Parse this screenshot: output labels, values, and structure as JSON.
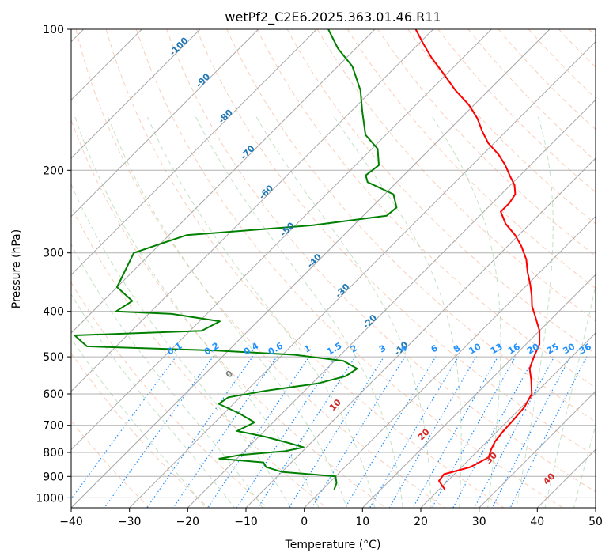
{
  "chart_data": {
    "type": "skew-t",
    "title": "wetPf2_C2E6.2025.363.01.46.R11",
    "xlabel": "Temperature (°C)",
    "ylabel": "Pressure (hPa)",
    "xlim": [
      -40,
      50
    ],
    "ylim": [
      1050,
      100
    ],
    "x_ticks": [
      -40,
      -30,
      -20,
      -10,
      0,
      10,
      20,
      30,
      40,
      50
    ],
    "x_tick_labels": [
      "−40",
      "−30",
      "−20",
      "−10",
      "0",
      "10",
      "20",
      "30",
      "40",
      "50"
    ],
    "y_ticks": [
      100,
      200,
      300,
      400,
      500,
      600,
      700,
      800,
      900,
      1000
    ],
    "y_tick_labels": [
      "100",
      "200",
      "300",
      "400",
      "500",
      "600",
      "700",
      "800",
      "900",
      "1000"
    ],
    "grid": true,
    "temperature_profile": {
      "color": "#ff0000",
      "points": [
        {
          "p": 960,
          "t": 21.0
        },
        {
          "p": 920,
          "t": 18.5
        },
        {
          "p": 890,
          "t": 18.2
        },
        {
          "p": 860,
          "t": 21.5
        },
        {
          "p": 820,
          "t": 23.0
        },
        {
          "p": 790,
          "t": 22.1
        },
        {
          "p": 760,
          "t": 21.4
        },
        {
          "p": 720,
          "t": 21.0
        },
        {
          "p": 680,
          "t": 20.8
        },
        {
          "p": 640,
          "t": 20.5
        },
        {
          "p": 600,
          "t": 19.5
        },
        {
          "p": 560,
          "t": 17.0
        },
        {
          "p": 530,
          "t": 14.8
        },
        {
          "p": 500,
          "t": 13.5
        },
        {
          "p": 470,
          "t": 12.3
        },
        {
          "p": 440,
          "t": 10.0
        },
        {
          "p": 410,
          "t": 6.8
        },
        {
          "p": 390,
          "t": 4.5
        },
        {
          "p": 370,
          "t": 2.6
        },
        {
          "p": 350,
          "t": 0.4
        },
        {
          "p": 330,
          "t": -2.1
        },
        {
          "p": 310,
          "t": -4.5
        },
        {
          "p": 290,
          "t": -7.7
        },
        {
          "p": 275,
          "t": -10.6
        },
        {
          "p": 260,
          "t": -14.2
        },
        {
          "p": 245,
          "t": -17.1
        },
        {
          "p": 235,
          "t": -17.1
        },
        {
          "p": 225,
          "t": -17.6
        },
        {
          "p": 215,
          "t": -19.3
        },
        {
          "p": 205,
          "t": -21.8
        },
        {
          "p": 195,
          "t": -24.3
        },
        {
          "p": 185,
          "t": -27.3
        },
        {
          "p": 175,
          "t": -31.0
        },
        {
          "p": 165,
          "t": -34.1
        },
        {
          "p": 155,
          "t": -37.1
        },
        {
          "p": 145,
          "t": -40.9
        },
        {
          "p": 135,
          "t": -45.7
        },
        {
          "p": 125,
          "t": -50.3
        },
        {
          "p": 115,
          "t": -55.4
        },
        {
          "p": 107,
          "t": -59.4
        },
        {
          "p": 100,
          "t": -63.0
        }
      ]
    },
    "dewpoint_profile": {
      "color": "#008000",
      "points": [
        {
          "p": 960,
          "t": 2.0
        },
        {
          "p": 930,
          "t": 1.3
        },
        {
          "p": 900,
          "t": 0.0
        },
        {
          "p": 880,
          "t": -10.0
        },
        {
          "p": 860,
          "t": -13.5
        },
        {
          "p": 840,
          "t": -14.8
        },
        {
          "p": 825,
          "t": -23.0
        },
        {
          "p": 810,
          "t": -20.0
        },
        {
          "p": 795,
          "t": -13.0
        },
        {
          "p": 780,
          "t": -10.5
        },
        {
          "p": 765,
          "t": -13.5
        },
        {
          "p": 740,
          "t": -19.0
        },
        {
          "p": 720,
          "t": -24.7
        },
        {
          "p": 690,
          "t": -23.2
        },
        {
          "p": 660,
          "t": -27.4
        },
        {
          "p": 630,
          "t": -32.5
        },
        {
          "p": 610,
          "t": -32.0
        },
        {
          "p": 590,
          "t": -26.5
        },
        {
          "p": 570,
          "t": -19.0
        },
        {
          "p": 550,
          "t": -15.5
        },
        {
          "p": 530,
          "t": -14.8
        },
        {
          "p": 510,
          "t": -18.5
        },
        {
          "p": 495,
          "t": -28.0
        },
        {
          "p": 485,
          "t": -42.0
        },
        {
          "p": 475,
          "t": -65.0
        },
        {
          "p": 450,
          "t": -69.0
        },
        {
          "p": 440,
          "t": -48.0
        },
        {
          "p": 420,
          "t": -46.5
        },
        {
          "p": 405,
          "t": -56.0
        },
        {
          "p": 400,
          "t": -66.0
        },
        {
          "p": 380,
          "t": -65.0
        },
        {
          "p": 355,
          "t": -70.0
        },
        {
          "p": 300,
          "t": -73.0
        },
        {
          "p": 285,
          "t": -69.5
        },
        {
          "p": 275,
          "t": -67.0
        },
        {
          "p": 262,
          "t": -47.0
        },
        {
          "p": 250,
          "t": -36.0
        },
        {
          "p": 240,
          "t": -35.7
        },
        {
          "p": 225,
          "t": -38.5
        },
        {
          "p": 212,
          "t": -45.0
        },
        {
          "p": 205,
          "t": -46.5
        },
        {
          "p": 195,
          "t": -46.0
        },
        {
          "p": 180,
          "t": -49.0
        },
        {
          "p": 168,
          "t": -53.5
        },
        {
          "p": 150,
          "t": -58.0
        },
        {
          "p": 135,
          "t": -62.0
        },
        {
          "p": 120,
          "t": -67.5
        },
        {
          "p": 110,
          "t": -73.0
        },
        {
          "p": 100,
          "t": -78.0
        }
      ]
    },
    "isotherm_labels": {
      "color": "#1f77b4",
      "items": [
        {
          "t": -100,
          "p": 110,
          "text": "-100"
        },
        {
          "t": -90,
          "p": 130,
          "text": "-90"
        },
        {
          "t": -80,
          "p": 155,
          "text": "-80"
        },
        {
          "t": -70,
          "p": 185,
          "text": "-70"
        },
        {
          "t": -60,
          "p": 225,
          "text": "-60"
        },
        {
          "t": -50,
          "p": 270,
          "text": "-50"
        },
        {
          "t": -40,
          "p": 315,
          "text": "-40"
        },
        {
          "t": -30,
          "p": 365,
          "text": "-30"
        },
        {
          "t": -20,
          "p": 425,
          "text": "-20"
        },
        {
          "t": -10,
          "p": 485,
          "text": "-10"
        }
      ]
    },
    "moist_adiabat_labels": {
      "color": "#d62728",
      "items": [
        {
          "t": 0,
          "p": 550,
          "text": "0",
          "color": "#808080"
        },
        {
          "t": 10,
          "p": 640,
          "text": "10"
        },
        {
          "t": 20,
          "p": 740,
          "text": "20"
        },
        {
          "t": 30,
          "p": 830,
          "text": "30"
        },
        {
          "t": 40,
          "p": 920,
          "text": "40"
        }
      ]
    },
    "mixing_ratio_labels": {
      "color": "#1e90ff",
      "p": 500,
      "items": [
        {
          "w": 0.1,
          "text": "0.1"
        },
        {
          "w": 0.2,
          "text": "0.2"
        },
        {
          "w": 0.4,
          "text": "0.4"
        },
        {
          "w": 0.6,
          "text": "0.6"
        },
        {
          "w": 1,
          "text": "1"
        },
        {
          "w": 1.5,
          "text": "1.5"
        },
        {
          "w": 2,
          "text": "2"
        },
        {
          "w": 3,
          "text": "3"
        },
        {
          "w": 4,
          "text": "4"
        },
        {
          "w": 6,
          "text": "6"
        },
        {
          "w": 8,
          "text": "8"
        },
        {
          "w": 10,
          "text": "10"
        },
        {
          "w": 13,
          "text": "13"
        },
        {
          "w": 16,
          "text": "16"
        },
        {
          "w": 20,
          "text": "20"
        },
        {
          "w": 25,
          "text": "25"
        },
        {
          "w": 30,
          "text": "30"
        },
        {
          "w": 36,
          "text": "36"
        }
      ]
    }
  }
}
